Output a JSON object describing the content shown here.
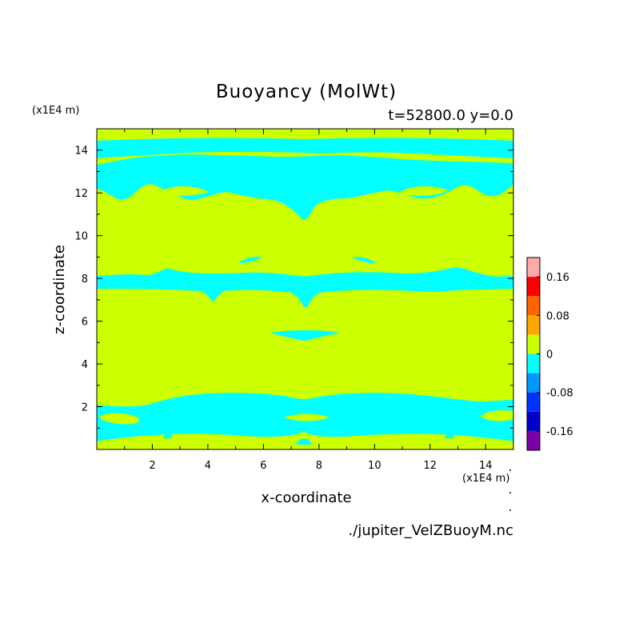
{
  "chart_data": {
    "type": "heatmap",
    "title": "Buoyancy (MolWt)",
    "subtitle": "t=52800.0 y=0.0",
    "xlabel": "x-coordinate",
    "ylabel": "z-coordinate",
    "x_unit": "(x1E4 m)",
    "y_unit": "(x1E4 m)",
    "source": "./jupiter_VelZBuoyM.nc",
    "xlim": [
      0,
      15
    ],
    "ylim": [
      0,
      15
    ],
    "x_ticks": [
      2,
      4,
      6,
      8,
      10,
      12,
      14
    ],
    "y_ticks": [
      2,
      4,
      6,
      8,
      10,
      12,
      14
    ],
    "colorbar": {
      "levels": [
        -0.2,
        -0.16,
        -0.12,
        -0.08,
        -0.04,
        0,
        0.04,
        0.08,
        0.12,
        0.16,
        0.2
      ],
      "colors": [
        "#7b00a8",
        "#0000c8",
        "#0032ff",
        "#0096ff",
        "#00ffff",
        "#ccff00",
        "#ffa500",
        "#ff6400",
        "#ff0000",
        "#ffaaaa"
      ],
      "tick_labels": [
        "0.16",
        "0.08",
        "0",
        "-0.08",
        "-0.16"
      ],
      "tick_values": [
        0.16,
        0.08,
        0,
        -0.08,
        -0.16
      ]
    },
    "regions": {
      "background_value": 0.02,
      "negative_value": -0.02,
      "negative_bands_z": [
        [
          0.0,
          2.4
        ],
        [
          7.2,
          8.5
        ],
        [
          11.2,
          14.1
        ],
        [
          14.3,
          14.8
        ]
      ]
    }
  }
}
